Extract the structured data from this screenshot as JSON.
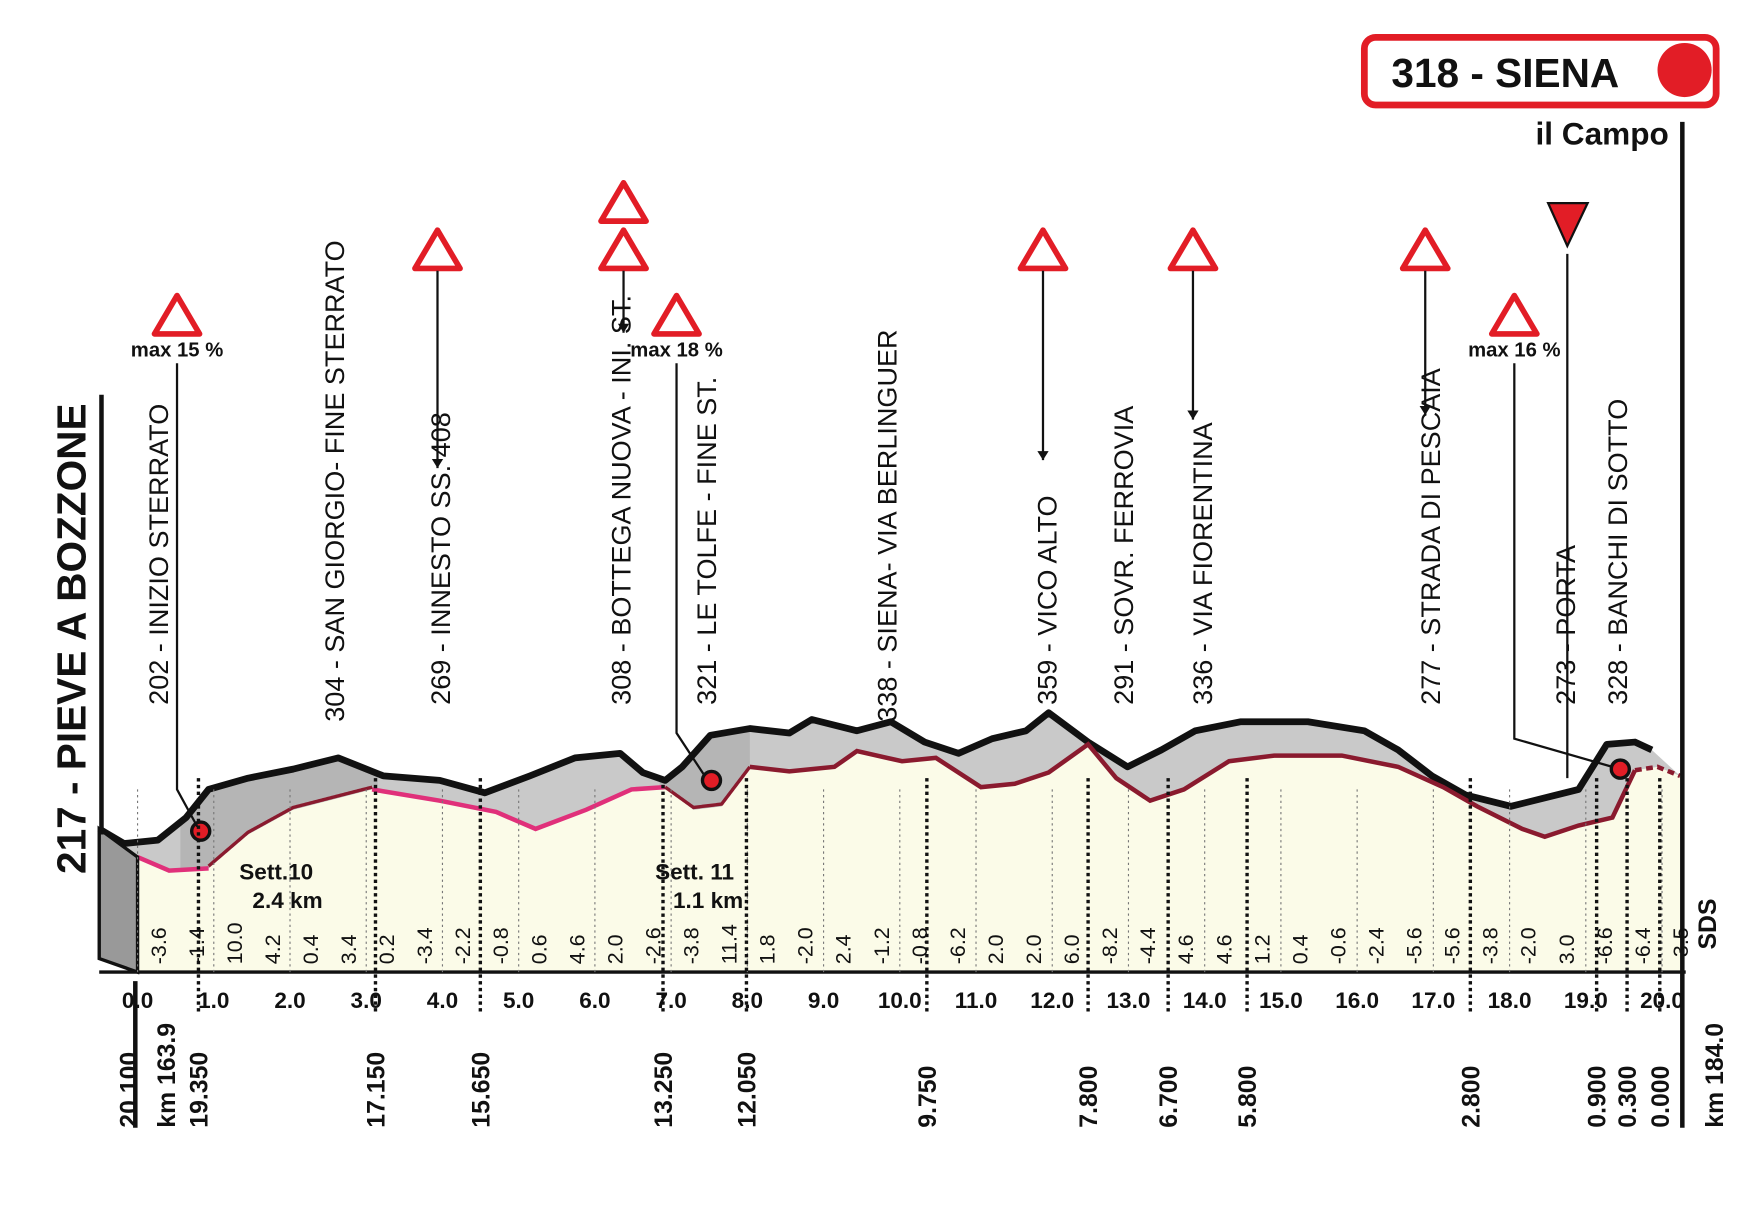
{
  "header": {
    "finish": "318 - SIENA",
    "finish_place": "il Campo"
  },
  "start": {
    "name": "217 - PIEVE A BOZZONE",
    "km": "km 163.9",
    "remaining": "20.100"
  },
  "finish": {
    "km": "km 184.0"
  },
  "km_axis": [
    "0.0",
    "1.0",
    "2.0",
    "3.0",
    "4.0",
    "5.0",
    "6.0",
    "7.0",
    "8.0",
    "9.0",
    "10.0",
    "11.0",
    "12.0",
    "13.0",
    "14.0",
    "15.0",
    "16.0",
    "17.0",
    "18.0",
    "19.0",
    "20.0"
  ],
  "gradients": [
    "-3.6",
    "-1.4",
    "10.0",
    "4.2",
    "0.4",
    "3.4",
    "0.2",
    "-3.4",
    "-2.2",
    "-0.8",
    "0.6",
    "4.6",
    "2.0",
    "-2.6",
    "-3.8",
    "11.4",
    "1.8",
    "-2.0",
    "2.4",
    "-1.2",
    "-0.8",
    "-6.2",
    "2.0",
    "2.0",
    "6.0",
    "-8.2",
    "-4.4",
    "4.6",
    "4.6",
    "1.2",
    "0.4",
    "-0.6",
    "-2.4",
    "-5.6",
    "-5.6",
    "-3.8",
    "-2.0",
    "3.0",
    "-6.6",
    "-6.4",
    "-3.5"
  ],
  "waypoints": [
    "202 - INIZIO STERRATO",
    "304 - SAN GIORGIO- FINE STERRATO",
    "269 - INNESTO SS. 408",
    "308 - BOTTEGA NUOVA - INI. ST.",
    "321 - LE TOLFE - FINE ST.",
    "338 - SIENA- VIA BERLINGUER",
    "359 - VICO ALTO",
    "291 - SOVR. FERROVIA",
    "336 - VIA FIORENTINA",
    "277 - STRADA DI PESCAIA",
    "273 - PORTA",
    "328 - BANCHI DI SOTTO"
  ],
  "remaining": [
    "19.350",
    "17.150",
    "15.650",
    "13.250",
    "12.050",
    "9.750",
    "7.800",
    "6.700",
    "5.800",
    "2.800",
    "0.900",
    "0.300",
    "0.000"
  ],
  "climbs": [
    "max 15 %",
    "max 18 %",
    "max 16 %"
  ],
  "sectors": [
    {
      "name": "Sett.10",
      "length": "2.4 km"
    },
    {
      "name": "Sett. 11",
      "length": "1.1 km"
    }
  ],
  "logo": "SDS"
}
